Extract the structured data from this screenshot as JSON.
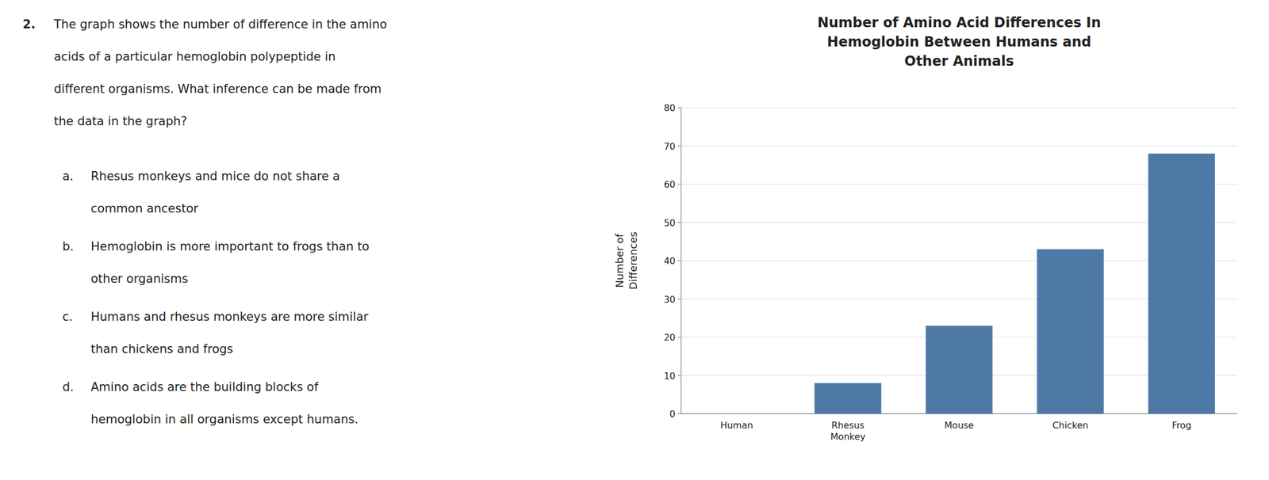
{
  "chart_data": {
    "type": "bar",
    "title": "Number of Amino Acid Differences In\nHemoglobin Between Humans and\nOther Animals",
    "y_label": "Number of\nDifferences",
    "categories": [
      "Human",
      "Rhesus\nMonkey",
      "Mouse",
      "Chicken",
      "Frog"
    ],
    "values": [
      0,
      8,
      23,
      43,
      68
    ],
    "color": "#4e79a7",
    "ylim": [
      0,
      80
    ],
    "yticks": [
      0,
      10,
      20,
      30,
      40,
      50,
      60,
      70,
      80
    ],
    "grid": true,
    "annotations": [
      {
        "label": "2.",
        "lines": [
          "The graph shows the number of difference in the amino",
          "acids of a particular hemoglobin polypeptide in",
          "different organisms. What inference can be made from",
          "the data in the graph?"
        ]
      },
      {
        "label": "a.",
        "lines": [
          "Rhesus monkeys and mice do not share a",
          "common ancestor"
        ]
      },
      {
        "label": "b.",
        "lines": [
          "Hemoglobin is more important to frogs than to",
          "other organisms"
        ]
      },
      {
        "label": "c.",
        "lines": [
          "Humans and rhesus monkeys are more similar",
          "than chickens and frogs"
        ]
      },
      {
        "label": "d.",
        "lines": [
          "Amino acids are the building blocks of",
          "hemoglobin in all organisms except humans."
        ]
      }
    ]
  }
}
